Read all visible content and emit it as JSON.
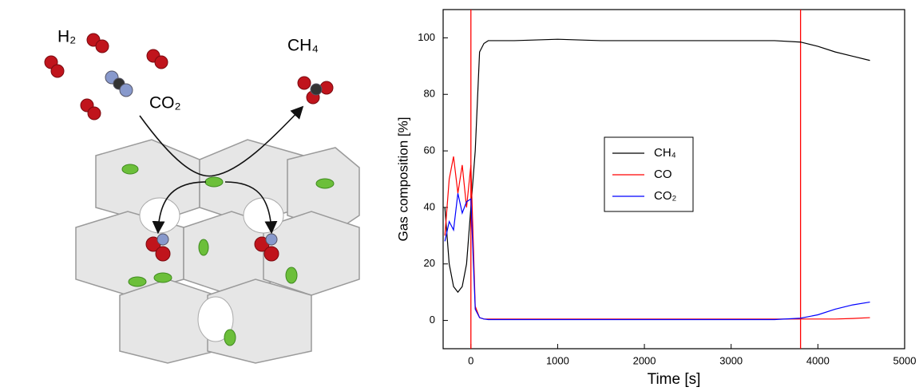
{
  "illustration": {
    "labels": {
      "h2": "H₂",
      "co2": "CO₂",
      "ch4": "CH₄"
    }
  },
  "chart_data": {
    "type": "line",
    "xlabel": "Time [s]",
    "ylabel": "Gas composition [%]",
    "x": [
      -300,
      -250,
      -200,
      -150,
      -100,
      -50,
      0,
      50,
      100,
      150,
      200,
      500,
      1000,
      1500,
      2000,
      2500,
      3000,
      3500,
      3800,
      4000,
      4200,
      4400,
      4600
    ],
    "series": [
      {
        "name": "CH₄",
        "color": "#000000",
        "values": [
          40,
          20,
          12,
          10,
          12,
          20,
          40,
          60,
          95,
          98,
          99,
          99,
          99.5,
          99,
          99,
          99,
          99,
          99,
          98.5,
          97,
          95,
          93.5,
          92
        ]
      },
      {
        "name": "CO",
        "color": "#ff0000",
        "values": [
          30,
          50,
          58,
          45,
          55,
          40,
          55,
          5,
          1,
          0.5,
          0.5,
          0.5,
          0.5,
          0.5,
          0.5,
          0.5,
          0.5,
          0.5,
          0.5,
          0.5,
          0.5,
          0.7,
          1
        ]
      },
      {
        "name": "CO₂",
        "color": "#0000ff",
        "values": [
          28,
          35,
          32,
          45,
          38,
          42,
          43,
          4,
          1,
          0.5,
          0.3,
          0.3,
          0.3,
          0.3,
          0.3,
          0.3,
          0.3,
          0.3,
          0.8,
          2,
          4,
          5.5,
          6.5
        ]
      }
    ],
    "vlines": [
      0,
      3800
    ],
    "vline_color": "#ff0000",
    "xlim": [
      -320,
      5000
    ],
    "xticks": [
      0,
      1000,
      2000,
      3000,
      4000,
      5000
    ],
    "ylim": [
      -10,
      110
    ],
    "yticks": [
      0,
      20,
      40,
      60,
      80,
      100
    ]
  }
}
